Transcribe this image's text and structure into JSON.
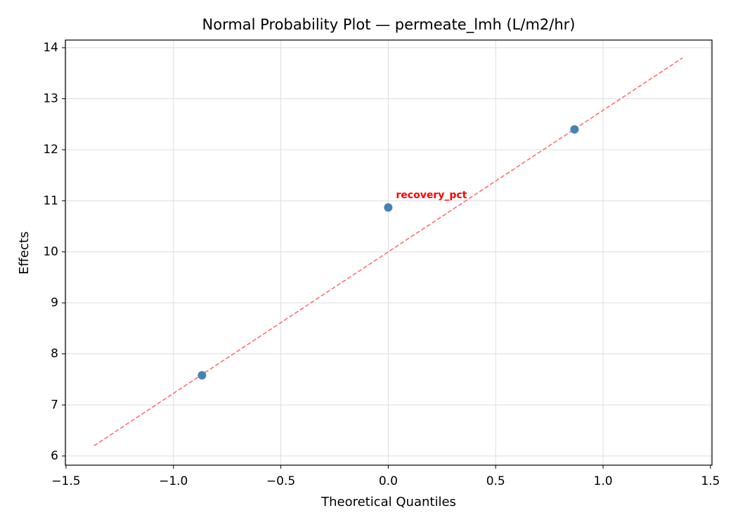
{
  "chart_data": {
    "type": "scatter",
    "title": "Normal Probability Plot — permeate_lmh (L/m2/hr)",
    "xlabel": "Theoretical Quantiles",
    "ylabel": "Effects",
    "xlim": [
      -1.503,
      1.507
    ],
    "ylim": [
      5.82,
      14.15
    ],
    "xticks": [
      {
        "value": -1.5,
        "label": "−1.5"
      },
      {
        "value": -1.0,
        "label": "−1.0"
      },
      {
        "value": -0.5,
        "label": "−0.5"
      },
      {
        "value": 0,
        "label": "0.0"
      },
      0.5,
      {
        "value": 1.0,
        "label": "1.0"
      },
      1.5
    ],
    "yticks": [
      6,
      7,
      8,
      9,
      10,
      11,
      12,
      13,
      14
    ],
    "grid": true,
    "series": [
      {
        "color": "#4682b4",
        "x": [
          -0.867,
          0,
          0.867
        ],
        "values": [
          7.58,
          10.87,
          12.4
        ],
        "labels": [
          null,
          "recovery_pct",
          null
        ],
        "label_color": "red"
      }
    ],
    "reference_line": {
      "color": "#ff6666",
      "x": [
        -1.37,
        1.37
      ],
      "y": [
        6.2,
        13.8
      ]
    }
  }
}
